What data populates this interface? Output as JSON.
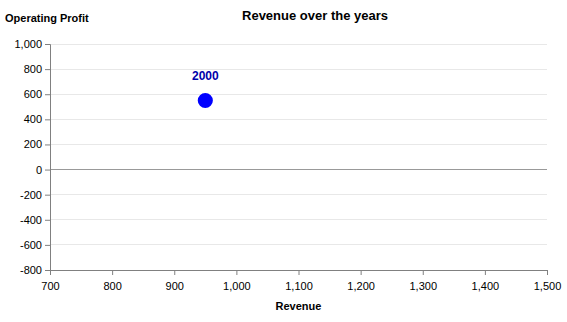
{
  "chart_data": {
    "type": "scatter",
    "title": "Revenue over the years",
    "x_label": "Revenue",
    "y_label": "Operating Profit",
    "x": [
      950
    ],
    "values": [
      550
    ],
    "point_labels": [
      "2000"
    ],
    "color": "#0000ff",
    "marker": "circle",
    "xlim": [
      700,
      1500
    ],
    "xticks": [
      700,
      800,
      900,
      {
        "value": 1000,
        "label": "1,000"
      },
      {
        "value": 1100,
        "label": "1,100"
      },
      {
        "value": 1200,
        "label": "1,200"
      },
      {
        "value": 1300,
        "label": "1,300"
      },
      {
        "value": 1400,
        "label": "1,400"
      },
      {
        "value": 1500,
        "label": "1,500"
      }
    ],
    "ylim": [
      -800,
      1000
    ],
    "yticks": [
      -800,
      -600,
      -400,
      -200,
      0,
      200,
      400,
      600,
      800,
      {
        "value": 1000,
        "label": "1,000"
      }
    ],
    "grid": true
  }
}
